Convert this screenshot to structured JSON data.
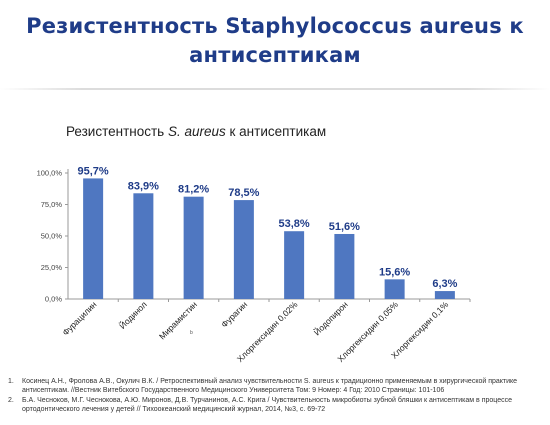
{
  "slide": {
    "title_line1": "Резистентность Staphylococcus aureus к",
    "title_line2": "антисептикам"
  },
  "chart_data": {
    "type": "bar",
    "title_prefix": "Резистентность ",
    "title_italic": "S. aureus",
    "title_suffix": " к антисептикам",
    "categories": [
      "Фурацилин",
      "Йодинол",
      "Мирамистин",
      "Фурагин",
      "Хлоргексидин 0,02%",
      "Йодопирон",
      "Хлоргексидин 0,05%",
      "Хлоргексидин 0,1%"
    ],
    "values": [
      95.7,
      83.9,
      81.2,
      78.5,
      53.8,
      51.6,
      15.6,
      6.3
    ],
    "data_labels": [
      "95,7%",
      "83,9%",
      "81,2%",
      "78,5%",
      "53,8%",
      "51,6%",
      "15,6%",
      "6,3%"
    ],
    "y_ticks": [
      0,
      25,
      50,
      75,
      100
    ],
    "y_tick_labels": [
      "0,0%",
      "25,0%",
      "50,0%",
      "75,0%",
      "100,0%"
    ],
    "ylim": [
      0,
      100
    ],
    "xlabel": "",
    "ylabel": "",
    "stray_mark": "b",
    "bar_color": "#4f77c1",
    "label_color": "#1f3c88"
  },
  "references": [
    {
      "num": "1.",
      "text": "Косинец А.Н., Фролова А.В., Окулич В.К. / Ретроспективный анализ чувствительности S. aureus к традиционно применяемым в хирургической практике антисептикам. //Вестник Витебского Государственного Медицинского Университета Том: 9 Номер: 4 Год: 2010 Страницы: 101-106"
    },
    {
      "num": "2.",
      "text": "Б.А. Чесноков, М.Г. Чеснокова, А.Ю. Миронов, Д.В. Турчанинов, А.С. Крига / Чувствительность микробиоты зубной бляшки к антисептикам в процессе ортодонтического лечения у детей // Тихоокеанский медицинский журнал, 2014, №3, с. 69-72"
    }
  ]
}
